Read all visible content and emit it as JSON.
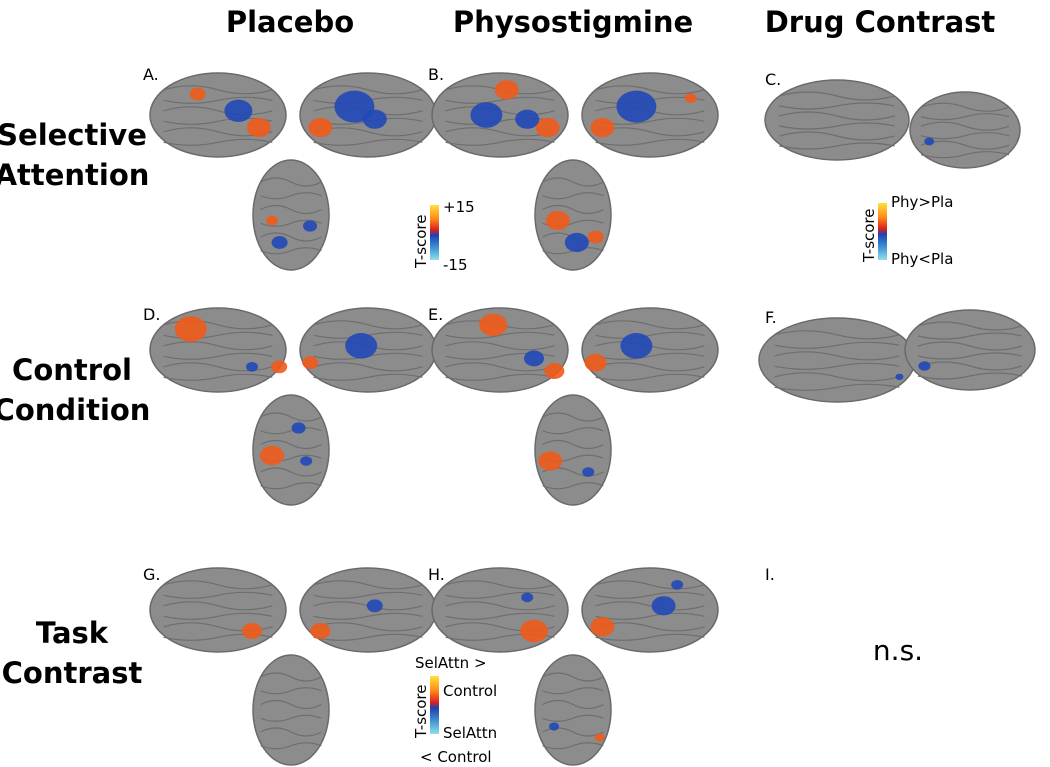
{
  "column_headers": [
    "Placebo",
    "Physostigmine",
    "Drug Contrast"
  ],
  "row_headers": [
    [
      "Selective",
      "Attention"
    ],
    [
      "Control",
      "Condition"
    ],
    [
      "Task",
      "Contrast"
    ]
  ],
  "panel_labels": [
    "A.",
    "B.",
    "C.",
    "D.",
    "E.",
    "F.",
    "G.",
    "H.",
    "I."
  ],
  "colorbars": [
    {
      "title": "T-score",
      "top": "+15",
      "bottom": "-15"
    },
    {
      "title": "T-score",
      "top": "Phy>Pla",
      "bottom": "Phy<Pla"
    },
    {
      "title": "T-score",
      "top": [
        "SelAttn >",
        "Control"
      ],
      "bottom": [
        "SelAttn",
        "< Control"
      ]
    }
  ],
  "annotation": "n.s."
}
